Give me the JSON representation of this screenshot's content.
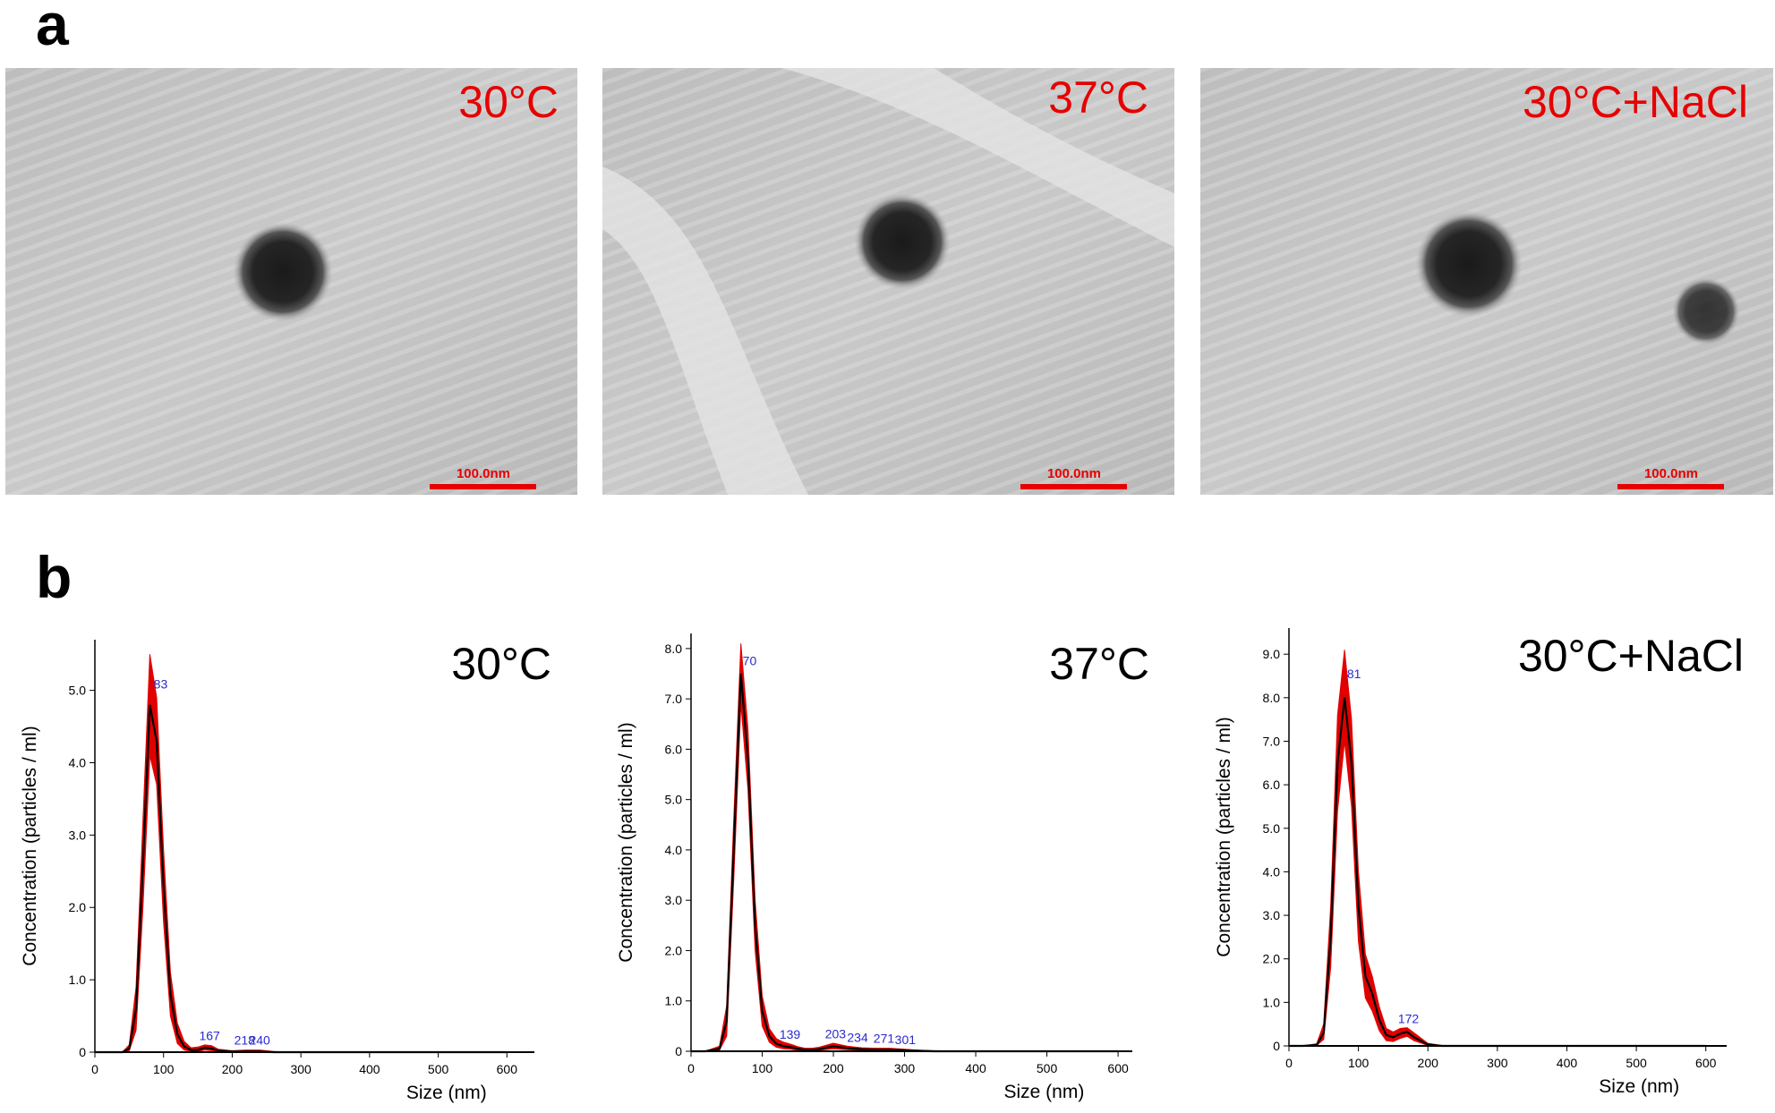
{
  "panels": {
    "a": {
      "label": "a",
      "images": [
        {
          "label": "30°C",
          "scale_bar": "100.0nm"
        },
        {
          "label": "37°C",
          "scale_bar": "100.0nm"
        },
        {
          "label": "30°C+NaCl",
          "scale_bar": "100.0nm"
        }
      ]
    },
    "b": {
      "label": "b"
    }
  },
  "chart_data": [
    {
      "type": "line",
      "title": "30°C",
      "x_label": "Size (nm)",
      "y_label": "Concentration (particles / ml)",
      "x": [
        0,
        20,
        40,
        50,
        60,
        70,
        80,
        90,
        100,
        110,
        120,
        130,
        140,
        150,
        160,
        170,
        180,
        200,
        220,
        240,
        260,
        280,
        300,
        320,
        340,
        400,
        500,
        600
      ],
      "series": [
        {
          "color": "#000000",
          "values": [
            0,
            0,
            0,
            0.05,
            0.6,
            2.6,
            4.8,
            4.3,
            2.3,
            0.8,
            0.25,
            0.08,
            0.03,
            0.03,
            0.06,
            0.05,
            0.02,
            0.01,
            0.01,
            0.01,
            0,
            0,
            0,
            0,
            0,
            0,
            0,
            0
          ]
        }
      ],
      "error_band": {
        "color": "#e00000",
        "upper": [
          0,
          0,
          0,
          0.1,
          0.9,
          3.2,
          5.5,
          4.9,
          2.8,
          1.1,
          0.4,
          0.15,
          0.06,
          0.07,
          0.1,
          0.09,
          0.04,
          0.02,
          0.03,
          0.03,
          0.01,
          0,
          0,
          0,
          0,
          0,
          0,
          0
        ],
        "lower": [
          0,
          0,
          0,
          0.02,
          0.3,
          2.0,
          4.1,
          3.7,
          1.8,
          0.5,
          0.12,
          0.03,
          0.01,
          0.01,
          0.03,
          0.02,
          0.01,
          0,
          0,
          0,
          0,
          0,
          0,
          0,
          0,
          0,
          0,
          0
        ]
      },
      "peaks": [
        83,
        167,
        218,
        240
      ],
      "xlim": [
        0,
        640
      ],
      "ylim": [
        0,
        5.7
      ],
      "xticks": [
        0,
        100,
        200,
        300,
        400,
        500,
        600
      ],
      "yticks": [
        0,
        {
          "value": 1,
          "label": "1.0"
        },
        {
          "value": 2,
          "label": "2.0"
        },
        {
          "value": 3,
          "label": "3.0"
        },
        {
          "value": 4,
          "label": "4.0"
        },
        {
          "value": 5,
          "label": "5.0"
        }
      ]
    },
    {
      "type": "line",
      "title": "37°C",
      "x_label": "Size (nm)",
      "y_label": "Concentration (particles / ml)",
      "x": [
        0,
        20,
        40,
        50,
        60,
        70,
        80,
        90,
        100,
        110,
        120,
        130,
        140,
        150,
        160,
        170,
        180,
        200,
        220,
        240,
        260,
        280,
        300,
        320,
        340,
        400,
        500,
        600
      ],
      "series": [
        {
          "color": "#000000",
          "values": [
            0,
            0,
            0.05,
            0.6,
            4.0,
            7.5,
            5.8,
            2.5,
            0.8,
            0.3,
            0.15,
            0.1,
            0.08,
            0.05,
            0.03,
            0.03,
            0.04,
            0.1,
            0.06,
            0.04,
            0.03,
            0.03,
            0.02,
            0.01,
            0,
            0,
            0,
            0
          ]
        }
      ],
      "error_band": {
        "color": "#e00000",
        "upper": [
          0,
          0,
          0.1,
          0.9,
          4.6,
          8.1,
          6.4,
          3.0,
          1.1,
          0.45,
          0.25,
          0.18,
          0.14,
          0.09,
          0.06,
          0.06,
          0.08,
          0.16,
          0.1,
          0.07,
          0.06,
          0.06,
          0.04,
          0.02,
          0.01,
          0,
          0,
          0
        ],
        "lower": [
          0,
          0,
          0.02,
          0.3,
          3.4,
          6.9,
          5.2,
          2.0,
          0.5,
          0.18,
          0.08,
          0.05,
          0.04,
          0.02,
          0.01,
          0.01,
          0.02,
          0.05,
          0.03,
          0.02,
          0.01,
          0.01,
          0.01,
          0,
          0,
          0,
          0,
          0
        ]
      },
      "peaks": [
        70,
        139,
        203,
        234,
        271,
        301
      ],
      "xlim": [
        0,
        620
      ],
      "ylim": [
        0,
        8.3
      ],
      "xticks": [
        0,
        100,
        200,
        300,
        400,
        500,
        600
      ],
      "yticks": [
        0,
        {
          "value": 1,
          "label": "1.0"
        },
        {
          "value": 2,
          "label": "2.0"
        },
        {
          "value": 3,
          "label": "3.0"
        },
        {
          "value": 4,
          "label": "4.0"
        },
        {
          "value": 5,
          "label": "5.0"
        },
        {
          "value": 6,
          "label": "6.0"
        },
        {
          "value": 7,
          "label": "7.0"
        },
        {
          "value": 8,
          "label": "8.0"
        }
      ]
    },
    {
      "type": "line",
      "title": "30°C+NaCl",
      "x_label": "Size (nm)",
      "y_label": "Concentration (particles / ml)",
      "x": [
        0,
        20,
        40,
        50,
        60,
        70,
        80,
        90,
        100,
        110,
        120,
        130,
        140,
        150,
        160,
        170,
        180,
        200,
        220,
        240,
        260,
        280,
        300,
        320,
        340,
        400,
        500,
        600
      ],
      "series": [
        {
          "color": "#000000",
          "values": [
            0,
            0,
            0.02,
            0.3,
            2.5,
            6.5,
            8.0,
            6.5,
            3.2,
            1.6,
            1.2,
            0.6,
            0.25,
            0.2,
            0.28,
            0.32,
            0.2,
            0.03,
            0,
            0,
            0,
            0,
            0,
            0,
            0,
            0,
            0,
            0
          ]
        }
      ],
      "error_band": {
        "color": "#e00000",
        "upper": [
          0,
          0,
          0.05,
          0.5,
          3.2,
          7.6,
          9.1,
          7.5,
          4.0,
          2.1,
          1.6,
          0.9,
          0.4,
          0.32,
          0.4,
          0.42,
          0.3,
          0.06,
          0.01,
          0,
          0,
          0,
          0,
          0,
          0,
          0,
          0,
          0
        ],
        "lower": [
          0,
          0,
          0.01,
          0.15,
          1.8,
          5.4,
          7.0,
          5.5,
          2.4,
          1.1,
          0.8,
          0.35,
          0.12,
          0.1,
          0.17,
          0.22,
          0.12,
          0.01,
          0,
          0,
          0,
          0,
          0,
          0,
          0,
          0,
          0,
          0
        ]
      },
      "peaks": [
        81,
        172
      ],
      "xlim": [
        0,
        630
      ],
      "ylim": [
        0,
        9.6
      ],
      "xticks": [
        0,
        100,
        200,
        300,
        400,
        500,
        600
      ],
      "yticks": [
        0,
        {
          "value": 1,
          "label": "1.0"
        },
        {
          "value": 2,
          "label": "2.0"
        },
        {
          "value": 3,
          "label": "3.0"
        },
        {
          "value": 4,
          "label": "4.0"
        },
        {
          "value": 5,
          "label": "5.0"
        },
        {
          "value": 6,
          "label": "6.0"
        },
        {
          "value": 7,
          "label": "7.0"
        },
        {
          "value": 8,
          "label": "8.0"
        },
        {
          "value": 9,
          "label": "9.0"
        }
      ]
    }
  ]
}
